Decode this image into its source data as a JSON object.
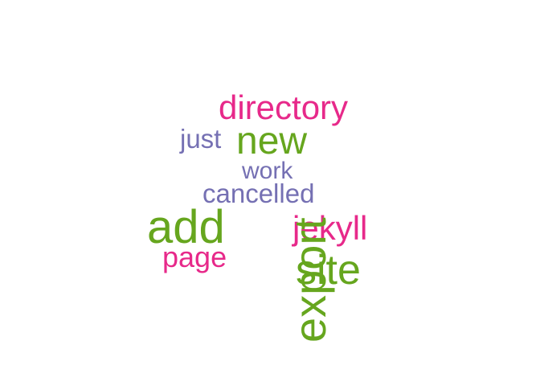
{
  "words": {
    "directory": "directory",
    "just": "just",
    "new": "new",
    "work": "work",
    "cancelled": "cancelled",
    "add": "add",
    "jekyll": "jekyll",
    "page": "page",
    "site": "site",
    "export": "export"
  },
  "colors": {
    "pink": "#e7298a",
    "green": "#66a61e",
    "purple": "#7570b3"
  }
}
